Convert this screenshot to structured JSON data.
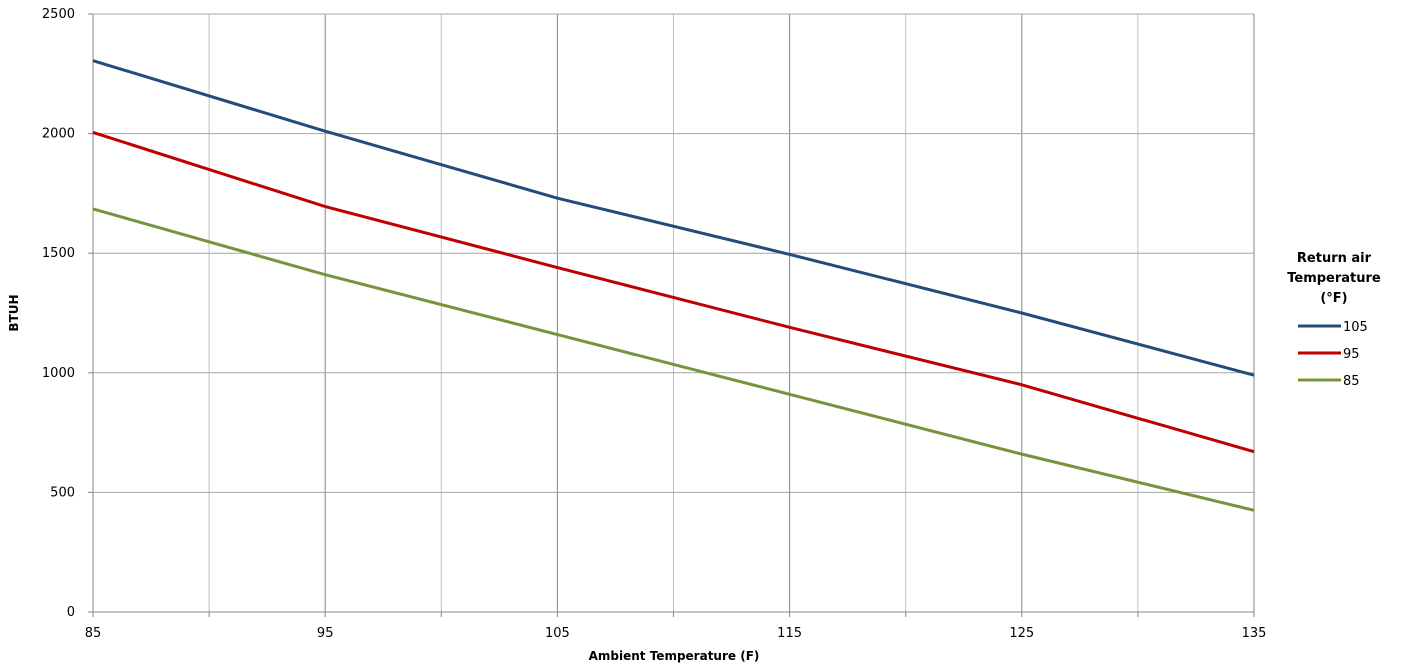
{
  "chart_data": {
    "type": "line",
    "title": "",
    "xlabel": "Ambient Temperature (F)",
    "ylabel": "BTUH",
    "xlim": [
      85,
      135
    ],
    "ylim": [
      0,
      2500
    ],
    "x_ticks": [
      "85",
      "95",
      "105",
      "115",
      "125",
      "135"
    ],
    "y_ticks": [
      "0",
      "500",
      "1000",
      "1500",
      "2000",
      "2500"
    ],
    "grid": true,
    "legend": {
      "title_lines": [
        "Return air",
        "Temperature",
        "(°F)"
      ],
      "placement": "right"
    },
    "x": [
      85,
      95,
      105,
      115,
      125,
      135
    ],
    "series": [
      {
        "name": "105",
        "color": "#254A7C",
        "values": [
          2305,
          2010,
          1730,
          1495,
          1250,
          990
        ]
      },
      {
        "name": "95",
        "color": "#C00000",
        "values": [
          2005,
          1695,
          1440,
          1190,
          950,
          670
        ]
      },
      {
        "name": "85",
        "color": "#77933C",
        "values": [
          1685,
          1410,
          1160,
          910,
          660,
          425
        ]
      }
    ]
  }
}
